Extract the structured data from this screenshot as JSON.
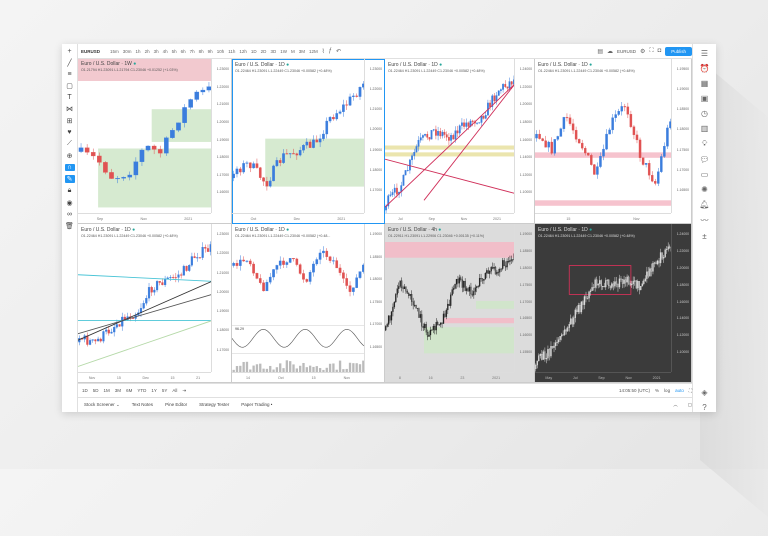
{
  "toolbar": {
    "symbol": "EURUSD",
    "timeframes": [
      "15m",
      "30m",
      "1h",
      "2h",
      "3h",
      "4h",
      "5h",
      "6h",
      "7h",
      "8h",
      "9h",
      "10h",
      "11h",
      "12h",
      "1D",
      "2D",
      "3D",
      "1W",
      "M",
      "3M",
      "12M"
    ],
    "layout_symbol": "EURUSD",
    "publish_label": "Publish"
  },
  "panels": [
    {
      "title": "Euro / U.S. Dollar · 1W",
      "ohlc": "O1.21794 H1.23091 L1.21794 C1.23046 +0.01252 (+1.03%)",
      "prices": [
        "1.23000",
        "1.22000",
        "1.21000",
        "1.20000",
        "1.19000",
        "1.18000",
        "1.17000",
        "1.16000"
      ],
      "dates": [
        "Sep",
        "Nov",
        "2021"
      ]
    },
    {
      "title": "Euro / U.S. Dollar · 1D",
      "ohlc": "O1.22464 H1.23091 L1.22449 C1.23046 +0.00582 (+0.48%)",
      "prices": [
        "1.23000",
        "1.22000",
        "1.21000",
        "1.20000",
        "1.19000",
        "1.18000",
        "1.17000"
      ],
      "dates": [
        "Oct",
        "Dec",
        "2021"
      ]
    },
    {
      "title": "Euro / U.S. Dollar · 1D",
      "ohlc": "O1.22464 H1.23091 L1.22449 C1.23046 +0.00582 (+0.48%)",
      "prices": [
        "1.24000",
        "1.22000",
        "1.20000",
        "1.18000",
        "1.16000",
        "1.14000",
        "1.12000",
        "1.10000"
      ],
      "dates": [
        "Jul",
        "Sep",
        "Nov",
        "2021"
      ]
    },
    {
      "title": "Euro / U.S. Dollar · 1D",
      "ohlc": "O1.22464 H1.23091 L1.22449 C1.23046 +0.00582 (+0.48%)",
      "prices": [
        "1.19500",
        "1.19000",
        "1.18500",
        "1.18000",
        "1.17500",
        "1.17000",
        "1.16500"
      ],
      "dates": [
        "15",
        "Nov"
      ]
    },
    {
      "title": "Euro / U.S. Dollar · 1D",
      "ohlc": "O1.22464 H1.23091 L1.22449 C1.23046 +0.00582 (+0.48%)",
      "prices": [
        "1.23000",
        "1.22000",
        "1.21000",
        "1.20000",
        "1.19000",
        "1.18000",
        "1.17000"
      ],
      "dates": [
        "Nov",
        "15",
        "Dec",
        "15",
        "21"
      ]
    },
    {
      "title": "Euro / U.S. Dollar · 1D",
      "ohlc": "O1.22464 H1.23091 L1.22449 C1.23046 +0.00582 (+0.48...",
      "prices": [
        "1.19000",
        "1.18500",
        "1.18000",
        "1.17500",
        "1.17000",
        "1.16500"
      ],
      "dates": [
        "14",
        "Oct",
        "15",
        "Nov"
      ],
      "indicator_value": "96.29"
    },
    {
      "title": "Euro / U.S. Dollar · 4h",
      "ohlc": "O1.22911 H1.23091 L1.22906 C1.23046 +0.00135 (+0.11%)",
      "prices": [
        "1.19000",
        "1.18500",
        "1.18000",
        "1.17500",
        "1.17000",
        "1.16500",
        "1.16000",
        "1.15500"
      ],
      "dates": [
        "8",
        "16",
        "23",
        "2021"
      ]
    },
    {
      "title": "Euro / U.S. Dollar · 1D",
      "ohlc": "O1.22464 H1.23091 L1.22449 C1.23046 +0.00582 (+0.48%)",
      "prices": [
        "1.24000",
        "1.22000",
        "1.20000",
        "1.18000",
        "1.16000",
        "1.14000",
        "1.12000",
        "1.10000"
      ],
      "dates": [
        "May",
        "Jul",
        "Sep",
        "Nov",
        "2021"
      ]
    }
  ],
  "bottom": {
    "ranges": [
      "1D",
      "5D",
      "1M",
      "3M",
      "6M",
      "YTD",
      "1Y",
      "5Y",
      "All"
    ],
    "time": "14:05:50 (UTC)",
    "percent": "%",
    "log": "log",
    "auto": "auto",
    "tabs": [
      "Stock Screener ⌄",
      "Text Notes",
      "Pine Editor",
      "Strategy Tester",
      "Paper Trading •"
    ]
  },
  "colors": {
    "up": "#3b7ddd",
    "down": "#e05252",
    "accent": "#2196f3",
    "zone_green": "#cfe6c8",
    "zone_pink": "#f4b8c6",
    "dark_bg": "#3b3b3b"
  }
}
